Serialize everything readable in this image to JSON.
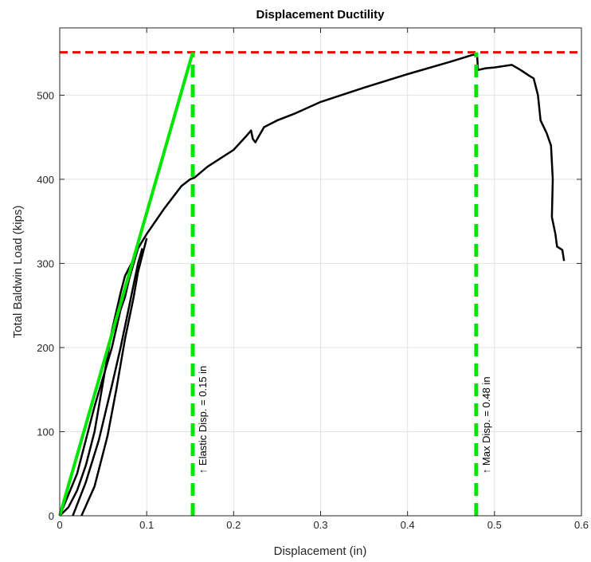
{
  "chart_data": {
    "type": "line",
    "title": "Displacement Ductility",
    "xlabel": "Displacement (in)",
    "ylabel": "Total Baldwin Load (kips)",
    "xlim": [
      0,
      0.6
    ],
    "ylim": [
      0,
      580
    ],
    "x_ticks": [
      0,
      0.1,
      0.2,
      0.3,
      0.4,
      0.5,
      0.6
    ],
    "x_tick_labels": [
      "0",
      "0.1",
      "0.2",
      "0.3",
      "0.4",
      "0.5",
      "0.6"
    ],
    "y_ticks": [
      0,
      100,
      200,
      300,
      400,
      500
    ],
    "y_tick_labels": [
      "0",
      "100",
      "200",
      "300",
      "400",
      "500"
    ],
    "grid": true,
    "colors": {
      "curve": "#000000",
      "elastic": "#00e600",
      "peak": "#ff0000"
    },
    "series": [
      {
        "style": "solid",
        "color": "#000000",
        "points": [
          [
            0.0,
            0
          ],
          [
            0.01,
            10
          ],
          [
            0.02,
            30
          ],
          [
            0.03,
            60
          ],
          [
            0.04,
            100
          ],
          [
            0.05,
            160
          ],
          [
            0.06,
            220
          ],
          [
            0.07,
            265
          ],
          [
            0.075,
            285
          ],
          [
            0.08,
            295
          ],
          [
            0.085,
            305
          ],
          [
            0.09,
            318
          ],
          [
            0.1,
            335
          ],
          [
            0.12,
            365
          ],
          [
            0.14,
            392
          ],
          [
            0.15,
            400
          ],
          [
            0.155,
            402
          ],
          [
            0.17,
            415
          ],
          [
            0.2,
            435
          ],
          [
            0.215,
            452
          ],
          [
            0.22,
            458
          ],
          [
            0.222,
            448
          ],
          [
            0.225,
            444
          ],
          [
            0.235,
            462
          ],
          [
            0.25,
            470
          ],
          [
            0.27,
            478
          ],
          [
            0.3,
            492
          ],
          [
            0.35,
            509
          ],
          [
            0.4,
            525
          ],
          [
            0.45,
            540
          ],
          [
            0.475,
            548
          ],
          [
            0.48,
            548
          ],
          [
            0.481,
            530
          ],
          [
            0.49,
            532
          ],
          [
            0.5,
            533
          ],
          [
            0.52,
            536
          ],
          [
            0.53,
            530
          ],
          [
            0.54,
            523
          ],
          [
            0.545,
            520
          ],
          [
            0.55,
            500
          ],
          [
            0.553,
            470
          ],
          [
            0.56,
            455
          ],
          [
            0.565,
            440
          ],
          [
            0.567,
            400
          ],
          [
            0.566,
            355
          ],
          [
            0.57,
            335
          ],
          [
            0.572,
            320
          ],
          [
            0.578,
            316
          ],
          [
            0.58,
            303
          ]
        ]
      },
      {
        "style": "solid",
        "color": "#000000",
        "points": [
          [
            0.0,
            0
          ],
          [
            0.02,
            50
          ],
          [
            0.04,
            130
          ],
          [
            0.06,
            200
          ],
          [
            0.07,
            245
          ],
          [
            0.075,
            260
          ],
          [
            0.08,
            282
          ],
          [
            0.085,
            300
          ],
          [
            0.09,
            318
          ]
        ]
      },
      {
        "style": "solid",
        "color": "#000000",
        "points": [
          [
            0.015,
            0
          ],
          [
            0.03,
            40
          ],
          [
            0.045,
            90
          ],
          [
            0.06,
            155
          ],
          [
            0.07,
            200
          ],
          [
            0.078,
            240
          ],
          [
            0.085,
            275
          ],
          [
            0.09,
            300
          ],
          [
            0.095,
            318
          ]
        ]
      },
      {
        "style": "solid",
        "color": "#000000",
        "points": [
          [
            0.025,
            0
          ],
          [
            0.04,
            35
          ],
          [
            0.055,
            95
          ],
          [
            0.065,
            150
          ],
          [
            0.075,
            210
          ],
          [
            0.085,
            260
          ],
          [
            0.09,
            290
          ],
          [
            0.1,
            330
          ]
        ]
      },
      {
        "style": "solid",
        "color": "#00e600",
        "points": [
          [
            0.0,
            0
          ],
          [
            0.153,
            551
          ]
        ]
      },
      {
        "style": "dashed",
        "color": "#ff0000",
        "points": [
          [
            0.0,
            551
          ],
          [
            0.6,
            551
          ]
        ]
      },
      {
        "style": "dashed",
        "color": "#00e600",
        "points": [
          [
            0.153,
            0
          ],
          [
            0.153,
            551
          ]
        ]
      },
      {
        "style": "dashed",
        "color": "#00e600",
        "points": [
          [
            0.479,
            0
          ],
          [
            0.479,
            551
          ]
        ]
      }
    ],
    "annotations": [
      {
        "text": "↑ Elastic Disp. = 0.15 in",
        "x": 0.153,
        "y": 50
      },
      {
        "text": "↑ Max Disp. = 0.48 in",
        "x": 0.479,
        "y": 50
      }
    ]
  }
}
